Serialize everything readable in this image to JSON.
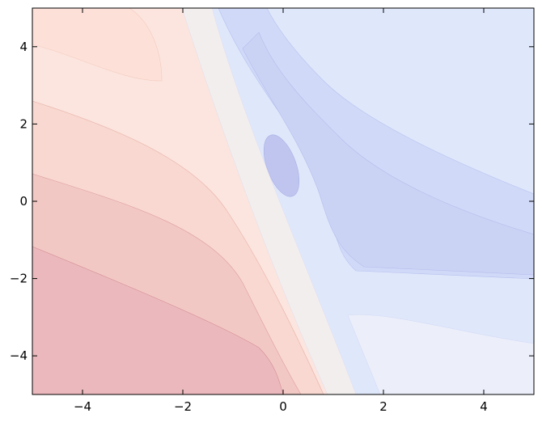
{
  "chart_data": {
    "type": "contour",
    "xlim": [
      -5,
      5
    ],
    "ylim": [
      -5,
      5
    ],
    "xticks": [
      {
        "value": -4,
        "label": "−4"
      },
      {
        "value": -2,
        "label": "−2"
      },
      0,
      2,
      4
    ],
    "yticks": [
      {
        "value": -4,
        "label": "−4"
      },
      {
        "value": -2,
        "label": "−2"
      },
      0,
      2,
      4
    ],
    "colormap": "coolwarm"
  }
}
